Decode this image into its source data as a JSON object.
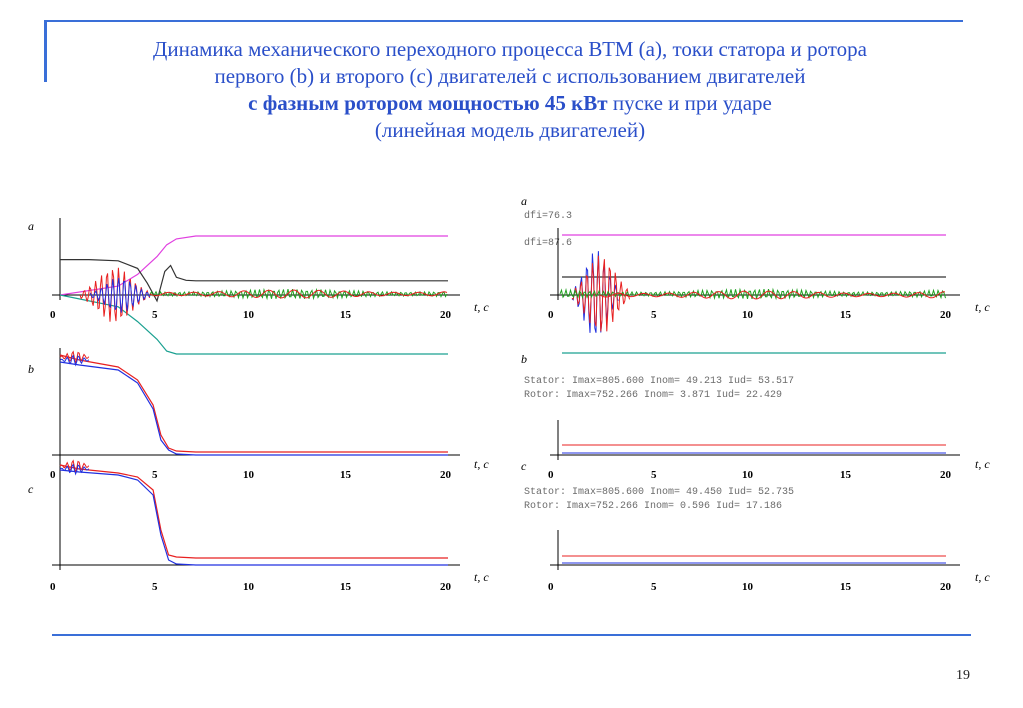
{
  "title": {
    "line1": "Динамика механического переходного процесса ВТМ (a), токи статора и ротора",
    "line2": "первого (b) и второго (c) двигателей с использованием двигателей",
    "line3_bold": "с фазным ротором мощностью 45 кВт",
    "line3_rest": " пуске и при ударе",
    "line4": "(линейная модель двигателей)"
  },
  "page_number": "19",
  "left": {
    "panel_labels": [
      "a",
      "b",
      "c"
    ],
    "x_ticks": [
      "0",
      "5",
      "10",
      "15",
      "20"
    ],
    "axis_label": "t, c"
  },
  "right": {
    "panel_labels": [
      "a",
      "b",
      "c"
    ],
    "x_ticks": [
      "0",
      "5",
      "10",
      "15",
      "20"
    ],
    "axis_label": "t, c",
    "annotations": {
      "dfi1": "dfi=76.3",
      "dfi2": "dfi=87.6",
      "b_stator": "Stator: Imax=805.600 Inom= 49.213 Iud= 53.517",
      "b_rotor": "Rotor: Imax=752.266 Inom=  3.871 Iud= 22.429",
      "c_stator": "Stator: Imax=805.600 Inom= 49.450 Iud= 52.735",
      "c_rotor": "Rotor: Imax=752.266 Inom=  0.596 Iud= 17.186"
    }
  },
  "colors": {
    "accent": "#3a6fd8",
    "title": "#2a4fc9",
    "magenta": "#e040e0",
    "teal": "#1aa090",
    "black": "#333333",
    "red": "#e82020",
    "blue": "#2030e0",
    "green": "#20a020"
  },
  "chart_data": [
    {
      "type": "line",
      "panel": "left-a",
      "x_range": [
        0,
        20
      ],
      "series": [
        {
          "color": "magenta",
          "x": [
            0,
            3,
            4,
            5,
            5.5,
            6,
            7,
            20
          ],
          "y": [
            0,
            0.15,
            0.35,
            0.65,
            0.85,
            0.95,
            1,
            1
          ]
        },
        {
          "color": "teal",
          "x": [
            0,
            3,
            4,
            5,
            5.5,
            6,
            20
          ],
          "y": [
            0,
            -0.2,
            -0.45,
            -0.75,
            -0.95,
            -1,
            -1
          ]
        },
        {
          "color": "black",
          "x": [
            0,
            1.5,
            3,
            4,
            4.5,
            5,
            5.4,
            5.7,
            6,
            6.5,
            7,
            20
          ],
          "y": [
            0.6,
            0.6,
            0.58,
            0.45,
            0.2,
            -0.1,
            0.4,
            0.5,
            0.3,
            0.25,
            0.24,
            0.24
          ]
        }
      ]
    },
    {
      "type": "line",
      "panel": "left-b",
      "x_range": [
        0,
        20
      ],
      "series": [
        {
          "color": "red",
          "x": [
            0,
            1,
            3,
            4,
            4.8,
            5.2,
            5.6,
            6,
            7,
            20
          ],
          "y": [
            1,
            0.95,
            0.88,
            0.75,
            0.5,
            0.2,
            0.07,
            0.04,
            0.03,
            0.03
          ]
        },
        {
          "color": "blue",
          "x": [
            0,
            1,
            3,
            4,
            4.8,
            5.2,
            5.6,
            6,
            7,
            20
          ],
          "y": [
            0.93,
            0.9,
            0.85,
            0.72,
            0.46,
            0.15,
            0.05,
            0.01,
            0.0,
            0.0
          ]
        }
      ]
    },
    {
      "type": "line",
      "panel": "left-c",
      "x_range": [
        0,
        20
      ],
      "series": [
        {
          "color": "red",
          "x": [
            0,
            1,
            3,
            4,
            4.8,
            5.2,
            5.6,
            6,
            7,
            20
          ],
          "y": [
            1,
            0.96,
            0.92,
            0.88,
            0.75,
            0.35,
            0.1,
            0.08,
            0.07,
            0.07
          ]
        },
        {
          "color": "blue",
          "x": [
            0,
            1,
            3,
            4,
            4.8,
            5.2,
            5.6,
            6,
            7,
            20
          ],
          "y": [
            0.95,
            0.93,
            0.9,
            0.85,
            0.7,
            0.3,
            0.05,
            0.01,
            0.0,
            0.0
          ]
        }
      ]
    }
  ]
}
